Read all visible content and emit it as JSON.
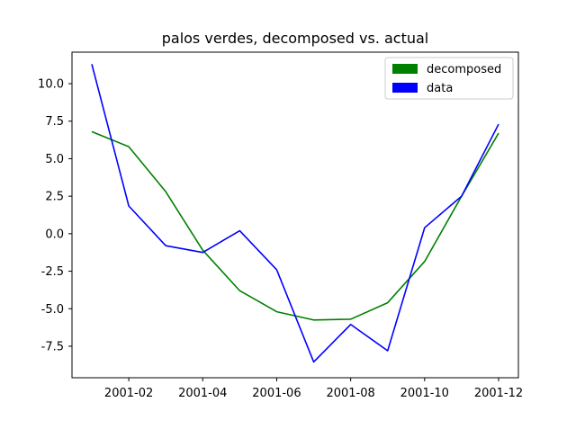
{
  "chart_data": {
    "type": "line",
    "title": "palos verdes, decomposed vs. actual",
    "xlabel": "",
    "ylabel": "",
    "x": [
      "2001-01",
      "2001-02",
      "2001-03",
      "2001-04",
      "2001-05",
      "2001-06",
      "2001-07",
      "2001-08",
      "2001-09",
      "2001-10",
      "2001-11",
      "2001-12"
    ],
    "x_ticks": [
      "2001-02",
      "2001-04",
      "2001-06",
      "2001-08",
      "2001-10",
      "2001-12"
    ],
    "y_ticks": [
      "10.0",
      "7.5",
      "5.0",
      "2.5",
      "0.0",
      "-2.5",
      "-5.0",
      "-7.5"
    ],
    "ylim": [
      -9.6,
      12.1
    ],
    "legend_position": "top-right",
    "grid": false,
    "series": [
      {
        "name": "decomposed",
        "color": "#008000",
        "values": [
          6.8,
          5.8,
          2.8,
          -1.1,
          -3.8,
          -5.2,
          -5.75,
          -5.7,
          -4.6,
          -1.85,
          2.5,
          6.7
        ]
      },
      {
        "name": "data",
        "color": "#0000ff",
        "values": [
          11.3,
          1.85,
          -0.8,
          -1.25,
          0.2,
          -2.4,
          -8.55,
          -6.05,
          -7.8,
          0.4,
          2.5,
          7.3
        ]
      }
    ]
  }
}
